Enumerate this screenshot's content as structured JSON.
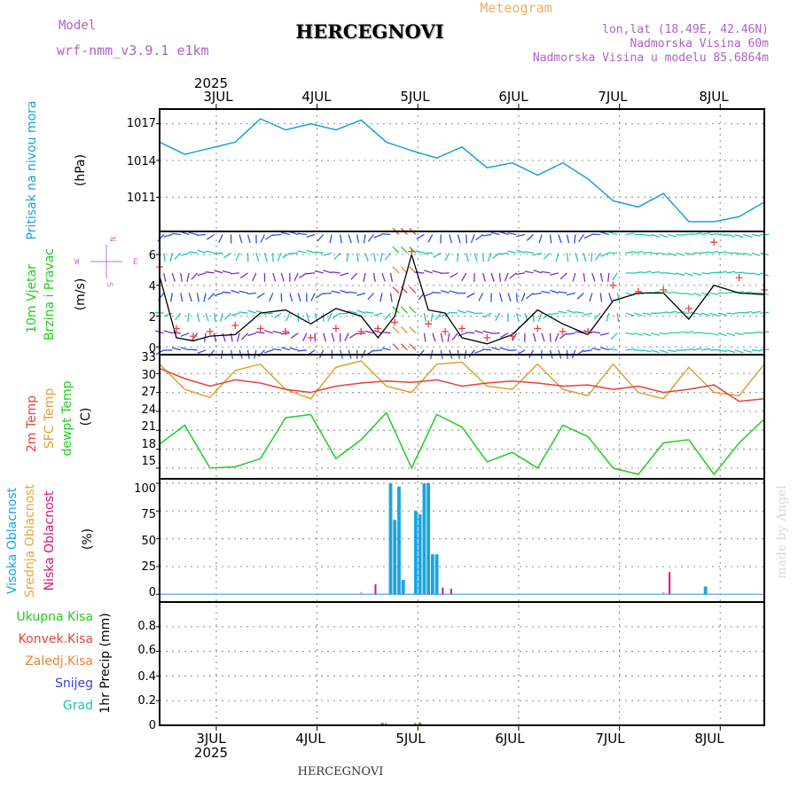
{
  "header": {
    "model_label": "Model",
    "model_name": "wrf-nmm_v3.9.1 e1km",
    "station": "HERCEGNOVI",
    "subtitle": "Meteogram",
    "lonlat": "lon,lat (18.49E, 42.46N)",
    "elevation": "Nadmorska Visina 60m",
    "model_elevation": "Nadmorska Visina u modelu 85.6864m",
    "footer_station": "HERCEGNOVI",
    "watermark": "made by Angel",
    "year_top": "2025",
    "year_bottom": "2025"
  },
  "days": [
    "3JUL",
    "4JUL",
    "5JUL",
    "6JUL",
    "7JUL",
    "8JUL"
  ],
  "colors": {
    "pressure": "#1a9fe0",
    "temp2m": "#e8423c",
    "sfc": "#e0a030",
    "dewpt": "#22cc22",
    "high": "#19a5e6",
    "mid": "#e6a83a",
    "low": "#d8127a",
    "wind_speed": "#000000",
    "gust": "#e8423c"
  },
  "panels": {
    "pressure": {
      "label1": "Pritisak na nivou mora",
      "unit": "(hPa)",
      "ticks": [
        "1017",
        "1014",
        "1011"
      ]
    },
    "wind": {
      "label1": "10m Vjetar",
      "label2": "Brzina i Pravac",
      "unit": "(m/s)",
      "ticks": [
        "6",
        "4",
        "2",
        "0"
      ],
      "compass": {
        "n": "N",
        "s": "S",
        "w": "W",
        "e": "E"
      }
    },
    "temp": {
      "label1": "2m Temp",
      "label2": "SFC Temp",
      "label3": "dewpt Temp",
      "unit": "(C)",
      "ticks": [
        "33",
        "30",
        "27",
        "24",
        "21",
        "18",
        "15"
      ]
    },
    "cloud": {
      "label1": "Visoka Oblacnost",
      "label2": "Srednja Oblacnost",
      "label3": "Niska Oblacnost",
      "unit": "(%)",
      "ticks": [
        "100",
        "75",
        "50",
        "25",
        "0"
      ]
    },
    "precip": {
      "labels": [
        "Ukupna Kisa",
        "Konvek.Kisa",
        "Zaledj.Kisa",
        "Snijeg",
        "Grad"
      ],
      "unit": "1hr Precip (mm)",
      "ticks": [
        "0.8",
        "0.6",
        "0.4",
        "0.2",
        "0"
      ]
    }
  },
  "chart_data": [
    {
      "type": "line",
      "title": "Pritisak na nivou mora",
      "ylabel": "(hPa)",
      "ylim": [
        1008.2,
        1018.2
      ],
      "x_hours": [
        0,
        6,
        12,
        18,
        24,
        30,
        36,
        42,
        48,
        54,
        60,
        66,
        72,
        78,
        84,
        90,
        96,
        102,
        108,
        114,
        120,
        126,
        132,
        138,
        144
      ],
      "series": [
        {
          "values": [
            1015.5,
            1014.5,
            1015.0,
            1015.5,
            1017.4,
            1016.5,
            1017.0,
            1016.5,
            1017.3,
            1015.5,
            1014.8,
            1014.2,
            1015.1,
            1013.4,
            1013.8,
            1012.8,
            1013.8,
            1012.5,
            1010.7,
            1010.2,
            1011.3,
            1009.0,
            1009.0,
            1009.4,
            1010.6
          ]
        }
      ]
    },
    {
      "type": "line",
      "title": "10m Vjetar Brzina i Pravac",
      "ylabel": "(m/s)",
      "ylim": [
        -0.5,
        7.5
      ],
      "x_hours": [
        0,
        4,
        8,
        12,
        18,
        24,
        30,
        36,
        42,
        48,
        52,
        56,
        60,
        64,
        68,
        72,
        78,
        84,
        90,
        96,
        102,
        108,
        114,
        120,
        126,
        132,
        138,
        144
      ],
      "series": [
        {
          "name": "speed",
          "values": [
            4.6,
            0.6,
            0.4,
            0.7,
            0.8,
            2.2,
            2.4,
            1.5,
            2.5,
            2.0,
            0.6,
            2.0,
            6.0,
            2.4,
            2.2,
            0.6,
            0.2,
            0.8,
            2.4,
            1.5,
            0.8,
            3.0,
            3.5,
            3.5,
            1.8,
            4.0,
            3.5,
            3.4
          ]
        },
        {
          "name": "gust",
          "values": [
            5.2,
            1.2,
            0.7,
            1.0,
            1.4,
            1.2,
            1.0,
            0.6,
            1.2,
            1.0,
            1.2,
            1.6,
            6.2,
            1.5,
            1.0,
            1.2,
            0.6,
            0.7,
            1.2,
            1.0,
            1.0,
            4.0,
            3.6,
            3.7,
            2.5,
            6.8,
            4.5,
            3.7
          ]
        }
      ]
    },
    {
      "type": "line",
      "title": "Temperature",
      "ylabel": "(C)",
      "ylim": [
        13.3,
        33
      ],
      "x_hours": [
        0,
        6,
        12,
        18,
        24,
        30,
        36,
        42,
        48,
        54,
        60,
        66,
        72,
        78,
        84,
        90,
        96,
        102,
        108,
        114,
        120,
        126,
        132,
        138,
        144
      ],
      "series": [
        {
          "name": "2m Temp",
          "values": [
            30.8,
            29.2,
            28.0,
            29.0,
            28.5,
            27.5,
            27.0,
            28.0,
            28.5,
            28.8,
            28.6,
            29.0,
            28.0,
            28.5,
            28.8,
            28.5,
            28.0,
            28.2,
            27.5,
            28.0,
            27.0,
            27.5,
            28.2,
            25.6,
            26.0
          ]
        },
        {
          "name": "SFC Temp",
          "values": [
            31.5,
            27.5,
            26.2,
            30.5,
            31.5,
            27.5,
            26.0,
            31.0,
            32.0,
            28.0,
            27.0,
            31.5,
            31.8,
            28.0,
            27.5,
            31.5,
            27.5,
            26.5,
            31.5,
            27.0,
            26.0,
            31.0,
            27.0,
            26.5,
            31.5
          ]
        },
        {
          "name": "dewpt Temp",
          "values": [
            18.8,
            21.8,
            15.0,
            15.2,
            16.5,
            23.0,
            23.5,
            16.5,
            19.5,
            23.8,
            15.0,
            23.5,
            21.5,
            16.0,
            17.5,
            15.0,
            21.8,
            20.0,
            15.0,
            14.0,
            19.0,
            19.5,
            14.0,
            19.0,
            22.8
          ]
        }
      ]
    },
    {
      "type": "bar",
      "title": "Oblacnost",
      "ylabel": "(%)",
      "ylim": [
        -7,
        104
      ],
      "series": [
        {
          "name": "Visoka Oblacnost",
          "x_hours": [
            55,
            56,
            57,
            58,
            59,
            60,
            61,
            62,
            63,
            64,
            65,
            66,
            67,
            130
          ],
          "values": [
            100,
            67,
            97,
            13,
            0,
            0,
            75,
            72,
            100,
            100,
            36,
            36,
            0,
            7
          ]
        },
        {
          "name": "Srednja Oblacnost",
          "x_hours": [
            48,
            120
          ],
          "values": [
            2,
            2
          ]
        },
        {
          "name": "Niska Oblacnost",
          "x_hours": [
            51,
            67,
            69,
            121
          ],
          "values": [
            9,
            6,
            5,
            20
          ]
        }
      ]
    },
    {
      "type": "bar",
      "title": "1hr Precip",
      "ylabel": "1hr Precip (mm)",
      "ylim": [
        0,
        1.0
      ],
      "series": [
        {
          "name": "Ukupna Kisa",
          "x_hours": [
            53,
            54,
            61,
            62
          ],
          "values": [
            0.01,
            0.01,
            0.01,
            0.01
          ]
        },
        {
          "name": "Konvek.Kisa",
          "x_hours": [
            53,
            62
          ],
          "values": [
            0.01,
            0.01
          ]
        },
        {
          "name": "Zaledj.Kisa",
          "x_hours": [],
          "values": []
        },
        {
          "name": "Snijeg",
          "x_hours": [],
          "values": []
        },
        {
          "name": "Grad",
          "x_hours": [],
          "values": []
        }
      ]
    }
  ]
}
